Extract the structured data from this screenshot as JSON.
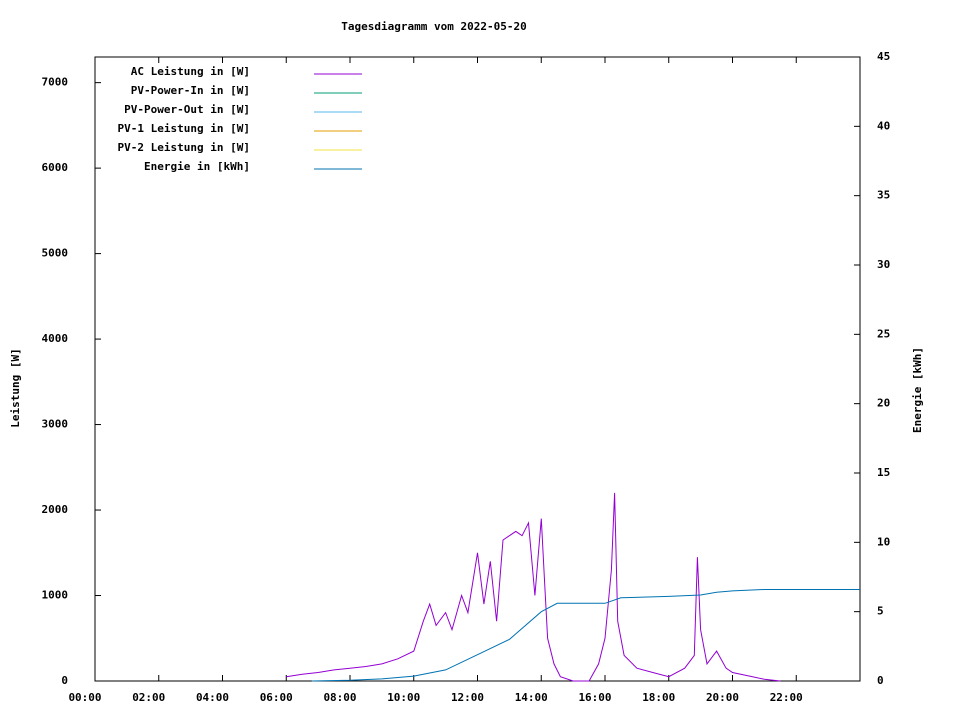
{
  "chart_data": {
    "type": "line",
    "title": "Tagesdiagramm vom 2022-05-20",
    "ylabel": "Leistung [W]",
    "y2label": "Energie [kWh]",
    "xlim": [
      0,
      24
    ],
    "xticks": [
      {
        "value": 0,
        "label": "00:00"
      },
      {
        "value": 2,
        "label": "02:00"
      },
      {
        "value": 4,
        "label": "04:00"
      },
      {
        "value": 6,
        "label": "06:00"
      },
      {
        "value": 8,
        "label": "08:00"
      },
      {
        "value": 10,
        "label": "10:00"
      },
      {
        "value": 12,
        "label": "12:00"
      },
      {
        "value": 14,
        "label": "14:00"
      },
      {
        "value": 16,
        "label": "16:00"
      },
      {
        "value": 18,
        "label": "18:00"
      },
      {
        "value": 20,
        "label": "20:00"
      },
      {
        "value": 22,
        "label": "22:00"
      }
    ],
    "ylim": [
      0,
      7300
    ],
    "yticks": [
      0,
      1000,
      2000,
      3000,
      4000,
      5000,
      6000,
      7000
    ],
    "y2lim": [
      0,
      45
    ],
    "y2ticks": [
      0,
      5,
      10,
      15,
      20,
      25,
      30,
      35,
      40,
      45
    ],
    "legend": "top-left",
    "series": [
      {
        "name": "AC Leistung in [W]",
        "color": "#9400d3",
        "x": [
          6.0,
          6.5,
          7.0,
          7.5,
          8.0,
          8.5,
          9.0,
          9.5,
          10.0,
          10.3,
          10.5,
          10.7,
          11.0,
          11.2,
          11.5,
          11.7,
          12.0,
          12.2,
          12.4,
          12.6,
          12.8,
          13.0,
          13.2,
          13.4,
          13.6,
          13.8,
          14.0,
          14.1,
          14.2,
          14.4,
          14.6,
          15.0,
          15.5,
          15.8,
          16.0,
          16.2,
          16.3,
          16.4,
          16.6,
          17.0,
          17.5,
          18.0,
          18.5,
          18.8,
          18.9,
          19.0,
          19.2,
          19.5,
          19.8,
          20.0,
          20.5,
          21.0,
          21.5
        ],
        "values": [
          50,
          80,
          100,
          130,
          150,
          170,
          200,
          260,
          350,
          700,
          900,
          650,
          800,
          600,
          1000,
          800,
          1500,
          900,
          1400,
          700,
          1650,
          1700,
          1750,
          1700,
          1850,
          1000,
          1900,
          1200,
          500,
          200,
          50,
          0,
          0,
          200,
          500,
          1300,
          2200,
          700,
          300,
          150,
          100,
          50,
          150,
          300,
          1450,
          600,
          200,
          350,
          150,
          100,
          60,
          20,
          0
        ]
      },
      {
        "name": "PV-Power-In in [W]",
        "color": "#009e73",
        "x": [],
        "values": []
      },
      {
        "name": "PV-Power-Out in [W]",
        "color": "#56b4e9",
        "x": [],
        "values": []
      },
      {
        "name": "PV-1 Leistung in [W]",
        "color": "#e69f00",
        "x": [],
        "values": []
      },
      {
        "name": "PV-2 Leistung in [W]",
        "color": "#f0e442",
        "x": [],
        "values": []
      },
      {
        "name": "Energie in [kWh]",
        "color": "#0072b2",
        "axis": "y2",
        "x": [
          6.8,
          8.0,
          9.0,
          10.0,
          11.0,
          12.0,
          13.0,
          14.0,
          14.5,
          16.0,
          16.5,
          18.0,
          19.0,
          19.5,
          20.0,
          21.0,
          24.0
        ],
        "values": [
          0,
          0.05,
          0.15,
          0.35,
          0.8,
          1.9,
          3.0,
          5.0,
          5.6,
          5.6,
          6.0,
          6.1,
          6.2,
          6.4,
          6.5,
          6.6,
          6.6
        ]
      }
    ]
  }
}
